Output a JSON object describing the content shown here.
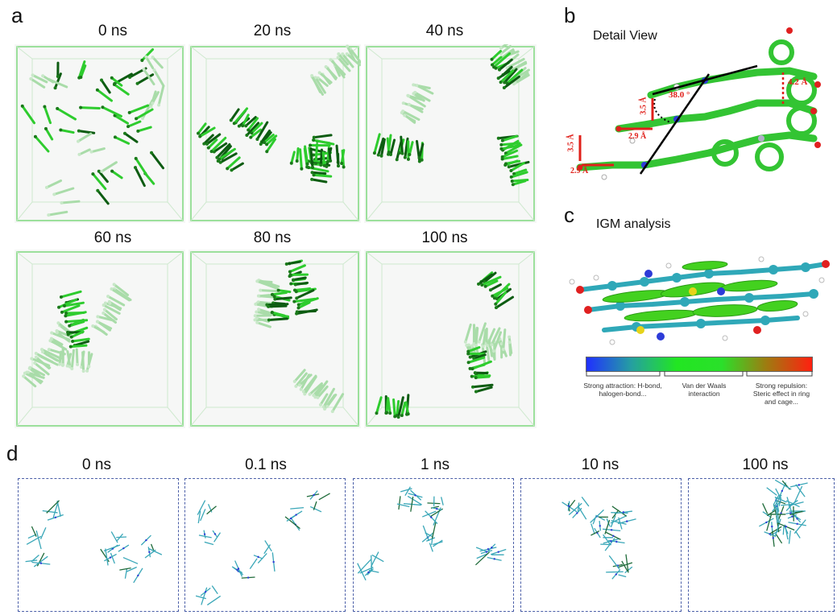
{
  "panels": {
    "a": {
      "letter": "a",
      "timepoints": [
        "0 ns",
        "20 ns",
        "40 ns",
        "60 ns",
        "80 ns",
        "100 ns"
      ]
    },
    "b": {
      "letter": "b",
      "title": "Detail View",
      "annotations": {
        "angle": "38.0 °",
        "dist_top": "4.2 Å",
        "dist_v1": "3.5 Å",
        "dist_h1": "2.9 Å",
        "dist_v2": "3.5 Å",
        "dist_h2": "2.9 Å"
      }
    },
    "c": {
      "letter": "c",
      "title": "IGM analysis",
      "colorbar": {
        "colors": [
          "#2030ff",
          "#25a0a0",
          "#22e622",
          "#2ae02a",
          "#a07a10",
          "#ff2010"
        ],
        "left_label": "Strong attraction: H-bond, halogen-bond...",
        "mid_label": "Van der Waals interaction",
        "right_label": "Strong repulsion: Steric effect in ring and cage..."
      }
    },
    "d": {
      "letter": "d",
      "timepoints": [
        "0 ns",
        "0.1 ns",
        "1 ns",
        "10 ns",
        "100 ns"
      ]
    }
  },
  "colors": {
    "molecule_green": "#2ecc2e",
    "molecule_dark": "#0d5c12",
    "box_edge": "#7fd97f",
    "measure_red": "#e0201a",
    "d_molecule": "#3aa7b8",
    "dashed_border": "#4b5fa8"
  }
}
